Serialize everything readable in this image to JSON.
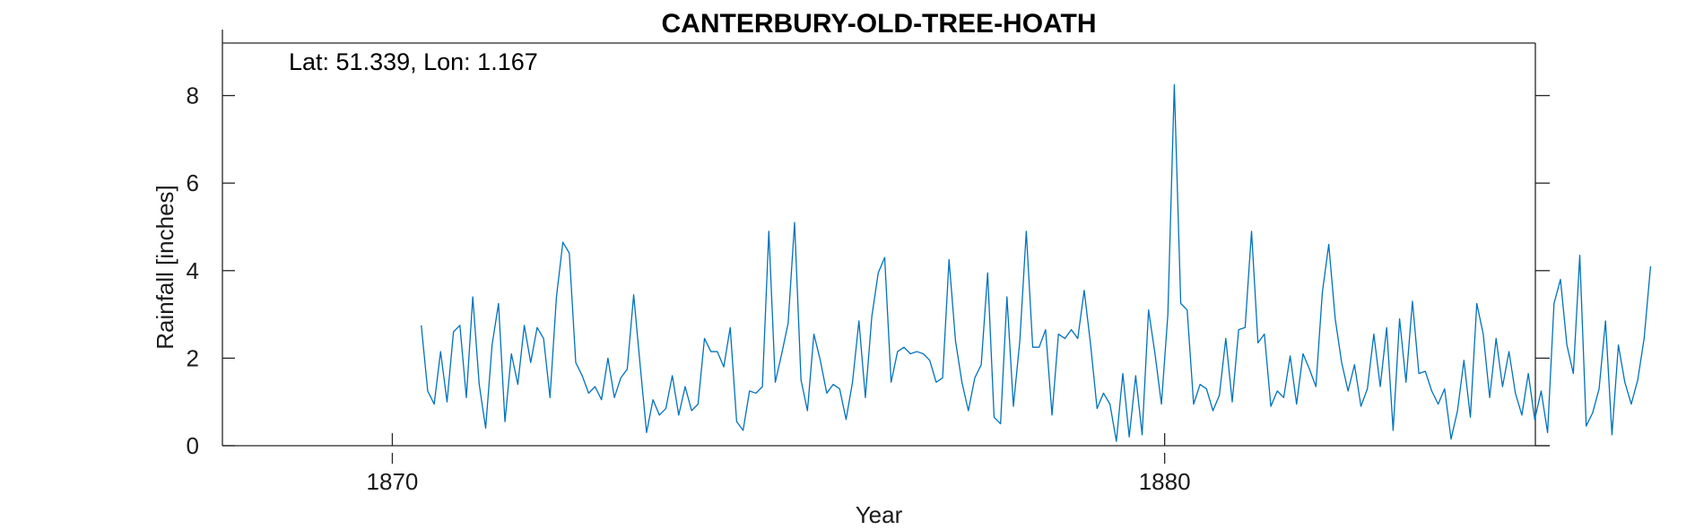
{
  "chart_data": {
    "type": "line",
    "title": "CANTERBURY-OLD-TREE-HOATH",
    "annotation": "Lat: 51.339, Lon: 1.167",
    "xlabel": "Year",
    "ylabel": "Rainfall [inches]",
    "xlim": [
      1867.8,
      1884.8
    ],
    "ylim": [
      0,
      9.2
    ],
    "xticks": [
      1870,
      1880
    ],
    "yticks": [
      0,
      2,
      4,
      6,
      8
    ],
    "grid": false,
    "color": "#0072BD",
    "series": [
      {
        "x_start": 1870.375,
        "x_step": 0.0833333,
        "values": [
          2.75,
          1.25,
          0.95,
          2.15,
          1.0,
          2.6,
          2.75,
          1.1,
          3.4,
          1.4,
          0.4,
          2.3,
          3.25,
          0.55,
          2.1,
          1.4,
          2.75,
          1.9,
          2.7,
          2.45,
          1.1,
          3.4,
          4.65,
          4.4,
          1.9,
          1.6,
          1.2,
          1.35,
          1.05,
          2.0,
          1.1,
          1.55,
          1.75,
          3.45,
          1.85,
          0.3,
          1.05,
          0.7,
          0.85,
          1.6,
          0.7,
          1.35,
          0.8,
          0.95,
          2.45,
          2.15,
          2.15,
          1.8,
          2.7,
          0.55,
          0.35,
          1.25,
          1.2,
          1.35,
          4.9,
          1.45,
          2.1,
          2.8,
          5.1,
          1.5,
          0.8,
          2.55,
          1.95,
          1.2,
          1.4,
          1.3,
          0.6,
          1.45,
          2.85,
          1.1,
          2.95,
          3.95,
          4.3,
          1.45,
          2.15,
          2.25,
          2.1,
          2.15,
          2.1,
          1.95,
          1.45,
          1.55,
          4.25,
          2.4,
          1.45,
          0.8,
          1.55,
          1.85,
          3.95,
          0.65,
          0.5,
          3.4,
          0.9,
          2.4,
          4.9,
          2.25,
          2.25,
          2.65,
          0.7,
          2.55,
          2.45,
          2.65,
          2.45,
          3.55,
          2.3,
          0.85,
          1.2,
          0.95,
          0.1,
          1.65,
          0.2,
          1.6,
          0.25,
          3.1,
          2.1,
          0.95,
          3.0,
          8.25,
          3.25,
          3.1,
          0.95,
          1.4,
          1.3,
          0.8,
          1.15,
          2.45,
          1.0,
          2.65,
          2.7,
          4.9,
          2.35,
          2.55,
          0.9,
          1.25,
          1.1,
          2.05,
          0.95,
          2.1,
          1.75,
          1.35,
          3.5,
          4.6,
          2.9,
          1.9,
          1.25,
          1.85,
          0.9,
          1.3,
          2.55,
          1.35,
          2.7,
          0.35,
          2.9,
          1.45,
          3.3,
          1.65,
          1.7,
          1.25,
          0.95,
          1.3,
          0.15,
          0.8,
          1.95,
          0.65,
          3.25,
          2.55,
          1.1,
          2.45,
          1.35,
          2.15,
          1.2,
          0.7,
          1.65,
          0.6,
          1.25,
          0.3,
          3.25,
          3.8,
          2.3,
          1.65,
          4.35,
          0.45,
          0.75,
          1.3,
          2.85,
          0.25,
          2.3,
          1.45,
          0.95,
          1.5,
          2.45,
          4.1
        ]
      }
    ]
  }
}
